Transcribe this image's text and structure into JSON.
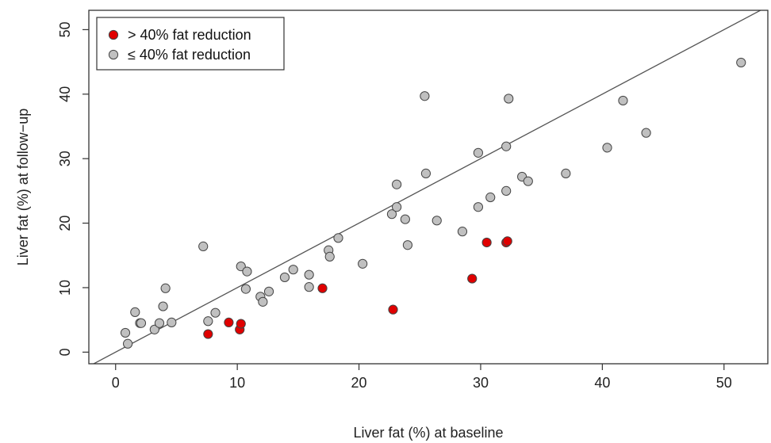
{
  "chart_data": {
    "type": "scatter",
    "xlabel": "Liver fat (%) at baseline",
    "ylabel": "Liver fat (%) at follow−up",
    "xlim": [
      -2.2,
      53.6
    ],
    "ylim": [
      -1.8,
      53
    ],
    "xticks": [
      "0",
      "10",
      "20",
      "30",
      "40",
      "50"
    ],
    "yticks": [
      "0",
      "10",
      "20",
      "30",
      "40",
      "50"
    ],
    "grid": false,
    "legend_position": "top-left",
    "reference_line": "identity (y = x)",
    "series": [
      {
        "name": "> 40% fat reduction",
        "color": "#e00000",
        "points": [
          [
            7.6,
            2.8
          ],
          [
            9.3,
            4.6
          ],
          [
            10.2,
            3.5
          ],
          [
            10.3,
            4.4
          ],
          [
            17.0,
            9.9
          ],
          [
            22.8,
            6.6
          ],
          [
            29.3,
            11.4
          ],
          [
            30.5,
            17.0
          ],
          [
            32.1,
            17.0
          ],
          [
            32.2,
            17.2
          ]
        ]
      },
      {
        "name": "≤ 40% fat reduction",
        "color": "#c0c0c0",
        "points": [
          [
            0.8,
            3.0
          ],
          [
            1.0,
            1.3
          ],
          [
            1.6,
            6.2
          ],
          [
            2.0,
            4.5
          ],
          [
            2.1,
            4.5
          ],
          [
            3.2,
            3.5
          ],
          [
            3.6,
            4.5
          ],
          [
            3.9,
            7.1
          ],
          [
            4.1,
            9.9
          ],
          [
            4.6,
            4.6
          ],
          [
            7.2,
            16.4
          ],
          [
            7.6,
            4.8
          ],
          [
            8.2,
            6.1
          ],
          [
            10.3,
            13.3
          ],
          [
            10.7,
            9.8
          ],
          [
            10.8,
            12.5
          ],
          [
            11.9,
            8.6
          ],
          [
            12.1,
            7.8
          ],
          [
            12.6,
            9.4
          ],
          [
            13.9,
            11.6
          ],
          [
            14.6,
            12.8
          ],
          [
            15.9,
            12.0
          ],
          [
            15.9,
            10.1
          ],
          [
            17.5,
            15.8
          ],
          [
            17.6,
            14.8
          ],
          [
            18.3,
            17.7
          ],
          [
            20.3,
            13.7
          ],
          [
            22.7,
            21.4
          ],
          [
            23.1,
            22.5
          ],
          [
            23.1,
            26.0
          ],
          [
            23.8,
            20.6
          ],
          [
            24.0,
            16.6
          ],
          [
            25.4,
            39.7
          ],
          [
            25.5,
            27.7
          ],
          [
            26.4,
            20.4
          ],
          [
            28.5,
            18.7
          ],
          [
            29.8,
            30.9
          ],
          [
            29.8,
            22.5
          ],
          [
            30.8,
            24.0
          ],
          [
            32.1,
            31.9
          ],
          [
            32.1,
            25.0
          ],
          [
            32.3,
            39.3
          ],
          [
            33.4,
            27.2
          ],
          [
            33.9,
            26.5
          ],
          [
            37.0,
            27.7
          ],
          [
            40.4,
            31.7
          ],
          [
            41.7,
            39.0
          ],
          [
            43.6,
            34.0
          ],
          [
            51.4,
            44.9
          ]
        ]
      }
    ]
  }
}
